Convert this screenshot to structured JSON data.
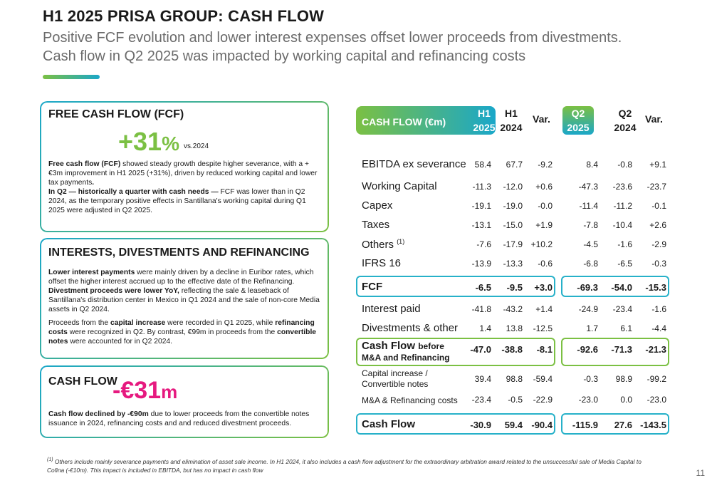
{
  "title": "H1 2025 PRISA GROUP: CASH FLOW",
  "subtitle_line1": "Positive FCF evolution and lower interest expenses offset lower proceeds from divestments.",
  "subtitle_line2": "Cash flow in Q2 2025 was impacted by working capital and refinancing costs",
  "fcf_card": {
    "heading": "FREE CASH FLOW (FCF)",
    "kpi_value": "+31",
    "kpi_unit": "%",
    "kpi_vs": "vs.2024",
    "p1_bold": "Free cash flow (FCF)",
    "p1_rest": " showed steady growth despite higher severance, with a +€3m improvement in H1 2025 (+31%), driven by reduced working capital and lower tax payments",
    "p1_end": ".",
    "p2_bold": "In Q2 — historically a quarter with cash needs —",
    "p2_rest": " FCF was lower than in Q2 2024, as the temporary positive effects in Santillana's working capital during Q1 2025 were adjusted in Q2 2025."
  },
  "interests_card": {
    "heading": "INTERESTS, DIVESTMENTS AND REFINANCING",
    "p1_bold": "Lower interest payments",
    "p1_rest": " were mainly driven by a decline in Euribor rates, which offset the higher interest accrued up to the effective date of the Refinancing.",
    "p1b_bold": "Divestment proceeds were lower YoY,",
    "p1b_rest": " reflecting the sale & leaseback of Santillana's distribution center in Mexico in Q1 2024 and the sale of non-core Media assets in Q2 2024.",
    "p2_a": "Proceeds from the ",
    "p2_b1": "capital increase",
    "p2_c": " were recorded in Q1 2025, while ",
    "p2_b2": "refinancing costs",
    "p2_d": " were recognized in Q2. By contrast, €99m in proceeds from the ",
    "p2_b3": "convertible notes",
    "p2_e": " were accounted for in Q2 2024."
  },
  "cashflow_card": {
    "heading": "CASH FLOW",
    "kpi_value": "-€31",
    "kpi_unit": "m",
    "p1_bold": "Cash flow declined by -€90m",
    "p1_rest": " due to lower proceeds from the convertible notes issuance in 2024, refinancing costs and and reduced divestment proceeds."
  },
  "table": {
    "header_label": "CASH FLOW (€m)",
    "h1_2025_a": "H1",
    "h1_2025_b": "2025",
    "h1_2024_a": "H1",
    "h1_2024_b": "2024",
    "var1": "Var.",
    "q2_2025_a": "Q2",
    "q2_2025_b": "2025",
    "q2_2024_a": "Q2",
    "q2_2024_b": "2024",
    "var2": "Var.",
    "rows": [
      {
        "label": "EBITDA ex severance",
        "v": [
          "58.4",
          "67.7",
          "-9.2",
          "8.4",
          "-0.8",
          "+9.1"
        ]
      },
      {
        "label": "Working Capital",
        "v": [
          "-11.3",
          "-12.0",
          "+0.6",
          "-47.3",
          "-23.6",
          "-23.7"
        ]
      },
      {
        "label": "Capex",
        "v": [
          "-19.1",
          "-19.0",
          "-0.0",
          "-11.4",
          "-11.2",
          "-0.1"
        ]
      },
      {
        "label": "Taxes",
        "v": [
          "-13.1",
          "-15.0",
          "+1.9",
          "-7.8",
          "-10.4",
          "+2.6"
        ]
      },
      {
        "label": "Others",
        "sup": "(1)",
        "v": [
          "-7.6",
          "-17.9",
          "+10.2",
          "-4.5",
          "-1.6",
          "-2.9"
        ]
      },
      {
        "label": "IFRS 16",
        "v": [
          "-13.9",
          "-13.3",
          "-0.6",
          "-6.8",
          "-6.5",
          "-0.3"
        ]
      },
      {
        "label": "FCF",
        "v": [
          "-6.5",
          "-9.5",
          "+3.0",
          "-69.3",
          "-54.0",
          "-15.3"
        ]
      },
      {
        "label": "Interest paid",
        "v": [
          "-41.8",
          "-43.2",
          "+1.4",
          "-24.9",
          "-23.4",
          "-1.6"
        ]
      },
      {
        "label": "Divestments & other",
        "v": [
          "1.4",
          "13.8",
          "-12.5",
          "1.7",
          "6.1",
          "-4.4"
        ]
      },
      {
        "label": "Cash Flow",
        "label_b": "before",
        "label_c": "M&A and Refinancing",
        "v": [
          "-47.0",
          "-38.8",
          "-8.1",
          "-92.6",
          "-71.3",
          "-21.3"
        ]
      },
      {
        "label": "Capital increase /",
        "label_c": "Convertible notes",
        "v": [
          "39.4",
          "98.8",
          "-59.4",
          "-0.3",
          "98.9",
          "-99.2"
        ]
      },
      {
        "label": "M&A & Refinancing costs",
        "v": [
          "-23.4",
          "-0.5",
          "-22.9",
          "-23.0",
          "0.0",
          "-23.0"
        ]
      },
      {
        "label": "Cash Flow",
        "v": [
          "-30.9",
          "59.4",
          "-90.4",
          "-115.9",
          "27.6",
          "-143.5"
        ]
      }
    ]
  },
  "footnote_sup": "(1)",
  "footnote": " Others include mainly severance payments and elimination of asset sale income. In H1 2024, it also includes a cash flow adjustment  for the extraordinary arbitration award related to the unsuccessful sale of Media Capital to Cofina (-€10m). This impact is included in EBITDA, but has no impact in cash flow",
  "page_number": "11"
}
